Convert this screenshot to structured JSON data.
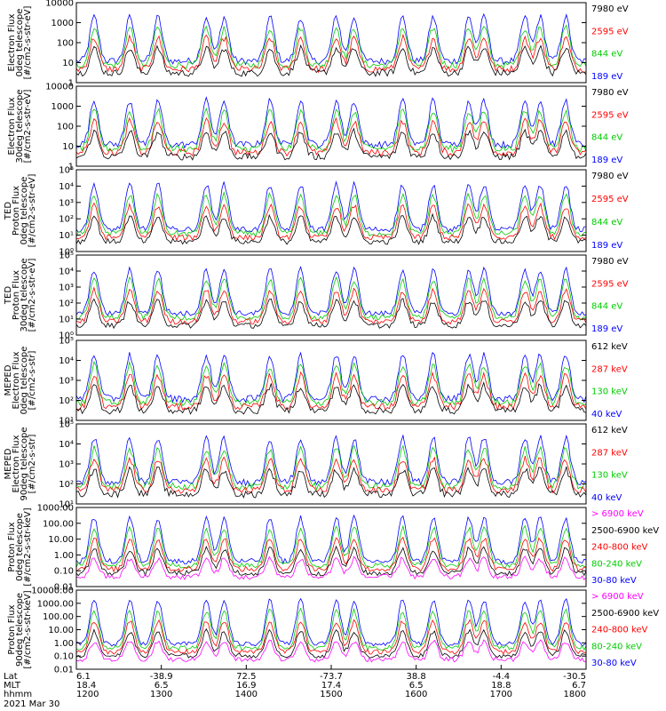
{
  "chart_data": {
    "type": "line",
    "time_axis": {
      "row_labels": [
        "Lat",
        "MLT",
        "hhmm"
      ],
      "ticks": [
        {
          "lat": "6.1",
          "mlt": "18.4",
          "hhmm": "1200"
        },
        {
          "lat": "-38.9",
          "mlt": "6.5",
          "hhmm": "1300"
        },
        {
          "lat": "72.5",
          "mlt": "16.9",
          "hhmm": "1400"
        },
        {
          "lat": "-73.7",
          "mlt": "17.4",
          "hhmm": "1500"
        },
        {
          "lat": "38.8",
          "mlt": "6.5",
          "hhmm": "1600"
        },
        {
          "lat": "-4.4",
          "mlt": "18.8",
          "hhmm": "1700"
        },
        {
          "lat": "-30.5",
          "mlt": "6.7",
          "hhmm": "1800"
        }
      ],
      "date": "2021 Mar 30",
      "x_range": [
        "1200",
        "1800"
      ]
    },
    "panels": [
      {
        "id": "ted-e-0",
        "ylabel": [
          "Electron Flux",
          "0deg telescope",
          "[#/cm2-s-str-eV]"
        ],
        "yticks": [
          "10000",
          "1000",
          "100",
          "10",
          "1"
        ],
        "scale": "log",
        "ylim": [
          1,
          10000
        ],
        "legend": [
          {
            "text": "7980 eV",
            "color": "#000000"
          },
          {
            "text": "2595 eV",
            "color": "#ff0000"
          },
          {
            "text": "844 eV",
            "color": "#00cc00"
          },
          {
            "text": "189 eV",
            "color": "#0000ff"
          }
        ]
      },
      {
        "id": "ted-e-30",
        "ylabel": [
          "Electron Flux",
          "30deg telescope",
          "[#/cm2-s-str-eV]"
        ],
        "yticks": [
          "10000",
          "1000",
          "100",
          "10",
          "1"
        ],
        "scale": "log",
        "ylim": [
          1,
          10000
        ],
        "legend": [
          {
            "text": "7980 eV",
            "color": "#000000"
          },
          {
            "text": "2595 eV",
            "color": "#ff0000"
          },
          {
            "text": "844 eV",
            "color": "#00cc00"
          },
          {
            "text": "189 eV",
            "color": "#0000ff"
          }
        ]
      },
      {
        "id": "ted-p-0",
        "ylabel": [
          "TED",
          "Proton Flux",
          "0deg telescope",
          "[#/cm2-s-str-eV]"
        ],
        "yticks": [
          "10⁵",
          "10⁴",
          "10³",
          "10²",
          "10¹",
          "10⁰"
        ],
        "scale": "log",
        "ylim": [
          1,
          100000
        ],
        "legend": [
          {
            "text": "7980 eV",
            "color": "#000000"
          },
          {
            "text": "2595 eV",
            "color": "#ff0000"
          },
          {
            "text": "844 eV",
            "color": "#00cc00"
          },
          {
            "text": "189 eV",
            "color": "#0000ff"
          }
        ]
      },
      {
        "id": "ted-p-30",
        "ylabel": [
          "TED",
          "Proton Flux",
          "30deg telescope",
          "[#/cm2-s-str-eV]"
        ],
        "yticks": [
          "10⁵",
          "10⁴",
          "10³",
          "10²",
          "10¹",
          "10⁰"
        ],
        "scale": "log",
        "ylim": [
          1,
          100000
        ],
        "legend": [
          {
            "text": "7980 eV",
            "color": "#000000"
          },
          {
            "text": "2595 eV",
            "color": "#ff0000"
          },
          {
            "text": "844 eV",
            "color": "#00cc00"
          },
          {
            "text": "189 eV",
            "color": "#0000ff"
          }
        ]
      },
      {
        "id": "meped-e-0",
        "ylabel": [
          "MEPED",
          "Electron Flux",
          "0deg telescope",
          "[#/cm2-s-str]"
        ],
        "yticks": [
          "10⁵",
          "10⁴",
          "10³",
          "10²",
          "10¹"
        ],
        "scale": "log",
        "ylim": [
          10,
          100000
        ],
        "legend": [
          {
            "text": "612 keV",
            "color": "#000000"
          },
          {
            "text": "287 keV",
            "color": "#ff0000"
          },
          {
            "text": "130 keV",
            "color": "#00cc00"
          },
          {
            "text": "40 keV",
            "color": "#0000ff"
          }
        ]
      },
      {
        "id": "meped-e-90",
        "ylabel": [
          "MEPED",
          "Electron Flux",
          "90deg telescope",
          "[#/cm2-s-str]"
        ],
        "yticks": [
          "10⁵",
          "10⁴",
          "10³",
          "10²",
          "10¹"
        ],
        "scale": "log",
        "ylim": [
          10,
          100000
        ],
        "legend": [
          {
            "text": "612 keV",
            "color": "#000000"
          },
          {
            "text": "287 keV",
            "color": "#ff0000"
          },
          {
            "text": "130 keV",
            "color": "#00cc00"
          },
          {
            "text": "40 keV",
            "color": "#0000ff"
          }
        ]
      },
      {
        "id": "meped-p-0",
        "ylabel": [
          "Proton Flux",
          "0deg telescope",
          "[#/cm2-s-str-keV]"
        ],
        "yticks": [
          "1000.00",
          "100.00",
          "10.00",
          "1.00",
          "0.10",
          "0.01"
        ],
        "scale": "log",
        "ylim": [
          0.01,
          1000
        ],
        "legend": [
          {
            "text": "> 6900 keV",
            "color": "#ff00ff"
          },
          {
            "text": "2500-6900 keV",
            "color": "#000000"
          },
          {
            "text": "240-800 keV",
            "color": "#ff0000"
          },
          {
            "text": "80-240 keV",
            "color": "#00cc00"
          },
          {
            "text": "30-80 keV",
            "color": "#0000ff"
          }
        ]
      },
      {
        "id": "meped-p-90",
        "ylabel": [
          "Proton Flux",
          "90deg telescope",
          "[#/cm2-s-str-keV]"
        ],
        "yticks": [
          "10000.00",
          "1000.00",
          "100.00",
          "10.00",
          "1.00",
          "0.10",
          "0.01"
        ],
        "scale": "log",
        "ylim": [
          0.01,
          10000
        ],
        "legend": [
          {
            "text": "> 6900 keV",
            "color": "#ff00ff"
          },
          {
            "text": "2500-6900 keV",
            "color": "#000000"
          },
          {
            "text": "240-800 keV",
            "color": "#ff0000"
          },
          {
            "text": "80-240 keV",
            "color": "#00cc00"
          },
          {
            "text": "30-80 keV",
            "color": "#0000ff"
          }
        ]
      }
    ]
  }
}
